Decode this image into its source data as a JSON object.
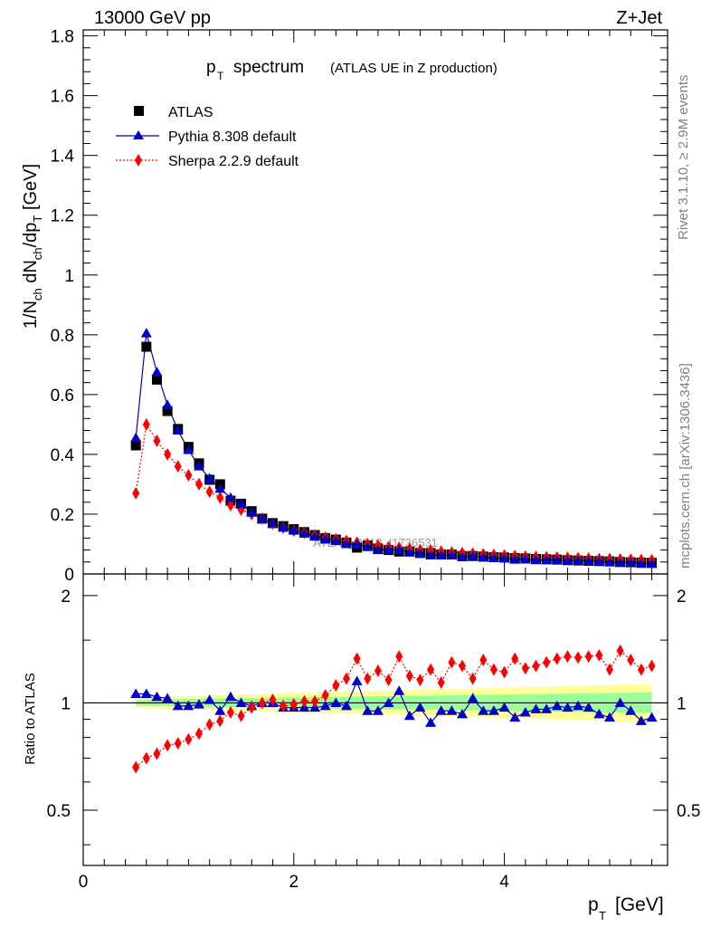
{
  "header": {
    "energy_label": "13000 GeV pp",
    "process_label": "Z+Jet"
  },
  "side": {
    "rivet_label": "Rivet 3.1.10, ≥ 2.9M events",
    "mcplots_label": "mcplots.cern.ch [arXiv:1306.3436]"
  },
  "watermark": "ATLAS_2019_I1736531",
  "chart_data": {
    "type": "scatter",
    "title_main": "p_T spectrum",
    "title_sub": "(ATLAS UE in Z production)",
    "xlabel": "p_T [GeV]",
    "ylabel": "1/N_ch dN_ch/dp_T [GeV]",
    "ratio_ylabel": "Ratio to ATLAS",
    "xlim": [
      0,
      5.55
    ],
    "ylim": [
      0,
      1.82
    ],
    "ratio_ylim": [
      0.35,
      2.3
    ],
    "x_ticks": [
      0,
      2,
      4
    ],
    "y_ticks": [
      0,
      0.2,
      0.4,
      0.6,
      0.8,
      1,
      1.2,
      1.4,
      1.6,
      1.8
    ],
    "ratio_ticks": [
      0.5,
      1,
      2
    ],
    "legend_position": "top-left",
    "x": [
      0.5,
      0.6,
      0.7,
      0.8,
      0.9,
      1.0,
      1.1,
      1.2,
      1.3,
      1.4,
      1.5,
      1.6,
      1.7,
      1.8,
      1.9,
      2.0,
      2.1,
      2.2,
      2.3,
      2.4,
      2.5,
      2.6,
      2.7,
      2.8,
      2.9,
      3.0,
      3.1,
      3.2,
      3.3,
      3.4,
      3.5,
      3.6,
      3.7,
      3.8,
      3.9,
      4.0,
      4.1,
      4.2,
      4.3,
      4.4,
      4.5,
      4.6,
      4.7,
      4.8,
      4.9,
      5.0,
      5.1,
      5.2,
      5.3,
      5.4
    ],
    "series": [
      {
        "name": "ATLAS",
        "color": "#000000",
        "marker": "square",
        "values": [
          0.43,
          0.76,
          0.65,
          0.545,
          0.485,
          0.425,
          0.37,
          0.315,
          0.3,
          0.245,
          0.235,
          0.21,
          0.185,
          0.17,
          0.16,
          0.15,
          0.14,
          0.13,
          0.12,
          0.115,
          0.105,
          0.088,
          0.095,
          0.085,
          0.08,
          0.075,
          0.075,
          0.07,
          0.07,
          0.065,
          0.065,
          0.06,
          0.06,
          0.058,
          0.056,
          0.055,
          0.053,
          0.052,
          0.05,
          0.049,
          0.048,
          0.046,
          0.045,
          0.044,
          0.043,
          0.042,
          0.04,
          0.039,
          0.038,
          0.037
        ]
      },
      {
        "name": "Pythia 8.308 default",
        "color": "#0000cc",
        "marker": "triangle",
        "values": [
          0.455,
          0.805,
          0.675,
          0.565,
          0.48,
          0.415,
          0.36,
          0.32,
          0.285,
          0.255,
          0.235,
          0.205,
          0.185,
          0.17,
          0.155,
          0.145,
          0.135,
          0.125,
          0.115,
          0.11,
          0.1,
          0.1,
          0.09,
          0.08,
          0.08,
          0.08,
          0.072,
          0.068,
          0.062,
          0.062,
          0.062,
          0.056,
          0.06,
          0.055,
          0.053,
          0.052,
          0.048,
          0.049,
          0.046,
          0.046,
          0.046,
          0.045,
          0.044,
          0.043,
          0.042,
          0.039,
          0.037,
          0.038,
          0.034,
          0.034
        ]
      },
      {
        "name": "Sherpa 2.2.9 default",
        "color": "#ff0000",
        "marker": "diamond",
        "values": [
          0.27,
          0.5,
          0.445,
          0.4,
          0.36,
          0.33,
          0.3,
          0.275,
          0.255,
          0.23,
          0.215,
          0.2,
          0.185,
          0.168,
          0.155,
          0.145,
          0.138,
          0.13,
          0.122,
          0.116,
          0.11,
          0.105,
          0.1,
          0.095,
          0.09,
          0.088,
          0.084,
          0.08,
          0.078,
          0.075,
          0.072,
          0.07,
          0.068,
          0.066,
          0.064,
          0.062,
          0.06,
          0.058,
          0.057,
          0.056,
          0.055,
          0.054,
          0.053,
          0.052,
          0.05,
          0.05,
          0.049,
          0.048,
          0.047,
          0.046
        ]
      }
    ],
    "ratio_series": [
      {
        "name": "Pythia 8.308 default",
        "values": [
          1.06,
          1.06,
          1.04,
          1.03,
          0.98,
          0.98,
          0.99,
          1.02,
          0.95,
          1.04,
          1.0,
          0.98,
          1.0,
          1.0,
          0.97,
          0.97,
          0.97,
          0.97,
          0.98,
          1.0,
          0.98,
          1.15,
          0.95,
          0.95,
          1.0,
          1.08,
          0.92,
          0.97,
          0.88,
          0.95,
          0.95,
          0.93,
          1.03,
          0.95,
          0.95,
          0.97,
          0.91,
          0.94,
          0.96,
          0.96,
          0.98,
          0.97,
          0.98,
          0.97,
          0.93,
          0.91,
          1.0,
          0.95,
          0.89,
          0.91
        ]
      },
      {
        "name": "Sherpa 2.2.9 default",
        "values": [
          0.66,
          0.7,
          0.72,
          0.76,
          0.77,
          0.79,
          0.82,
          0.87,
          0.89,
          0.94,
          0.92,
          0.97,
          1.0,
          1.02,
          0.98,
          0.99,
          1.01,
          1.01,
          1.05,
          1.12,
          1.17,
          1.33,
          1.17,
          1.23,
          1.16,
          1.35,
          1.19,
          1.16,
          1.24,
          1.14,
          1.3,
          1.27,
          1.17,
          1.32,
          1.24,
          1.22,
          1.33,
          1.25,
          1.27,
          1.3,
          1.33,
          1.35,
          1.34,
          1.35,
          1.36,
          1.24,
          1.4,
          1.32,
          1.24,
          1.27
        ]
      }
    ]
  }
}
